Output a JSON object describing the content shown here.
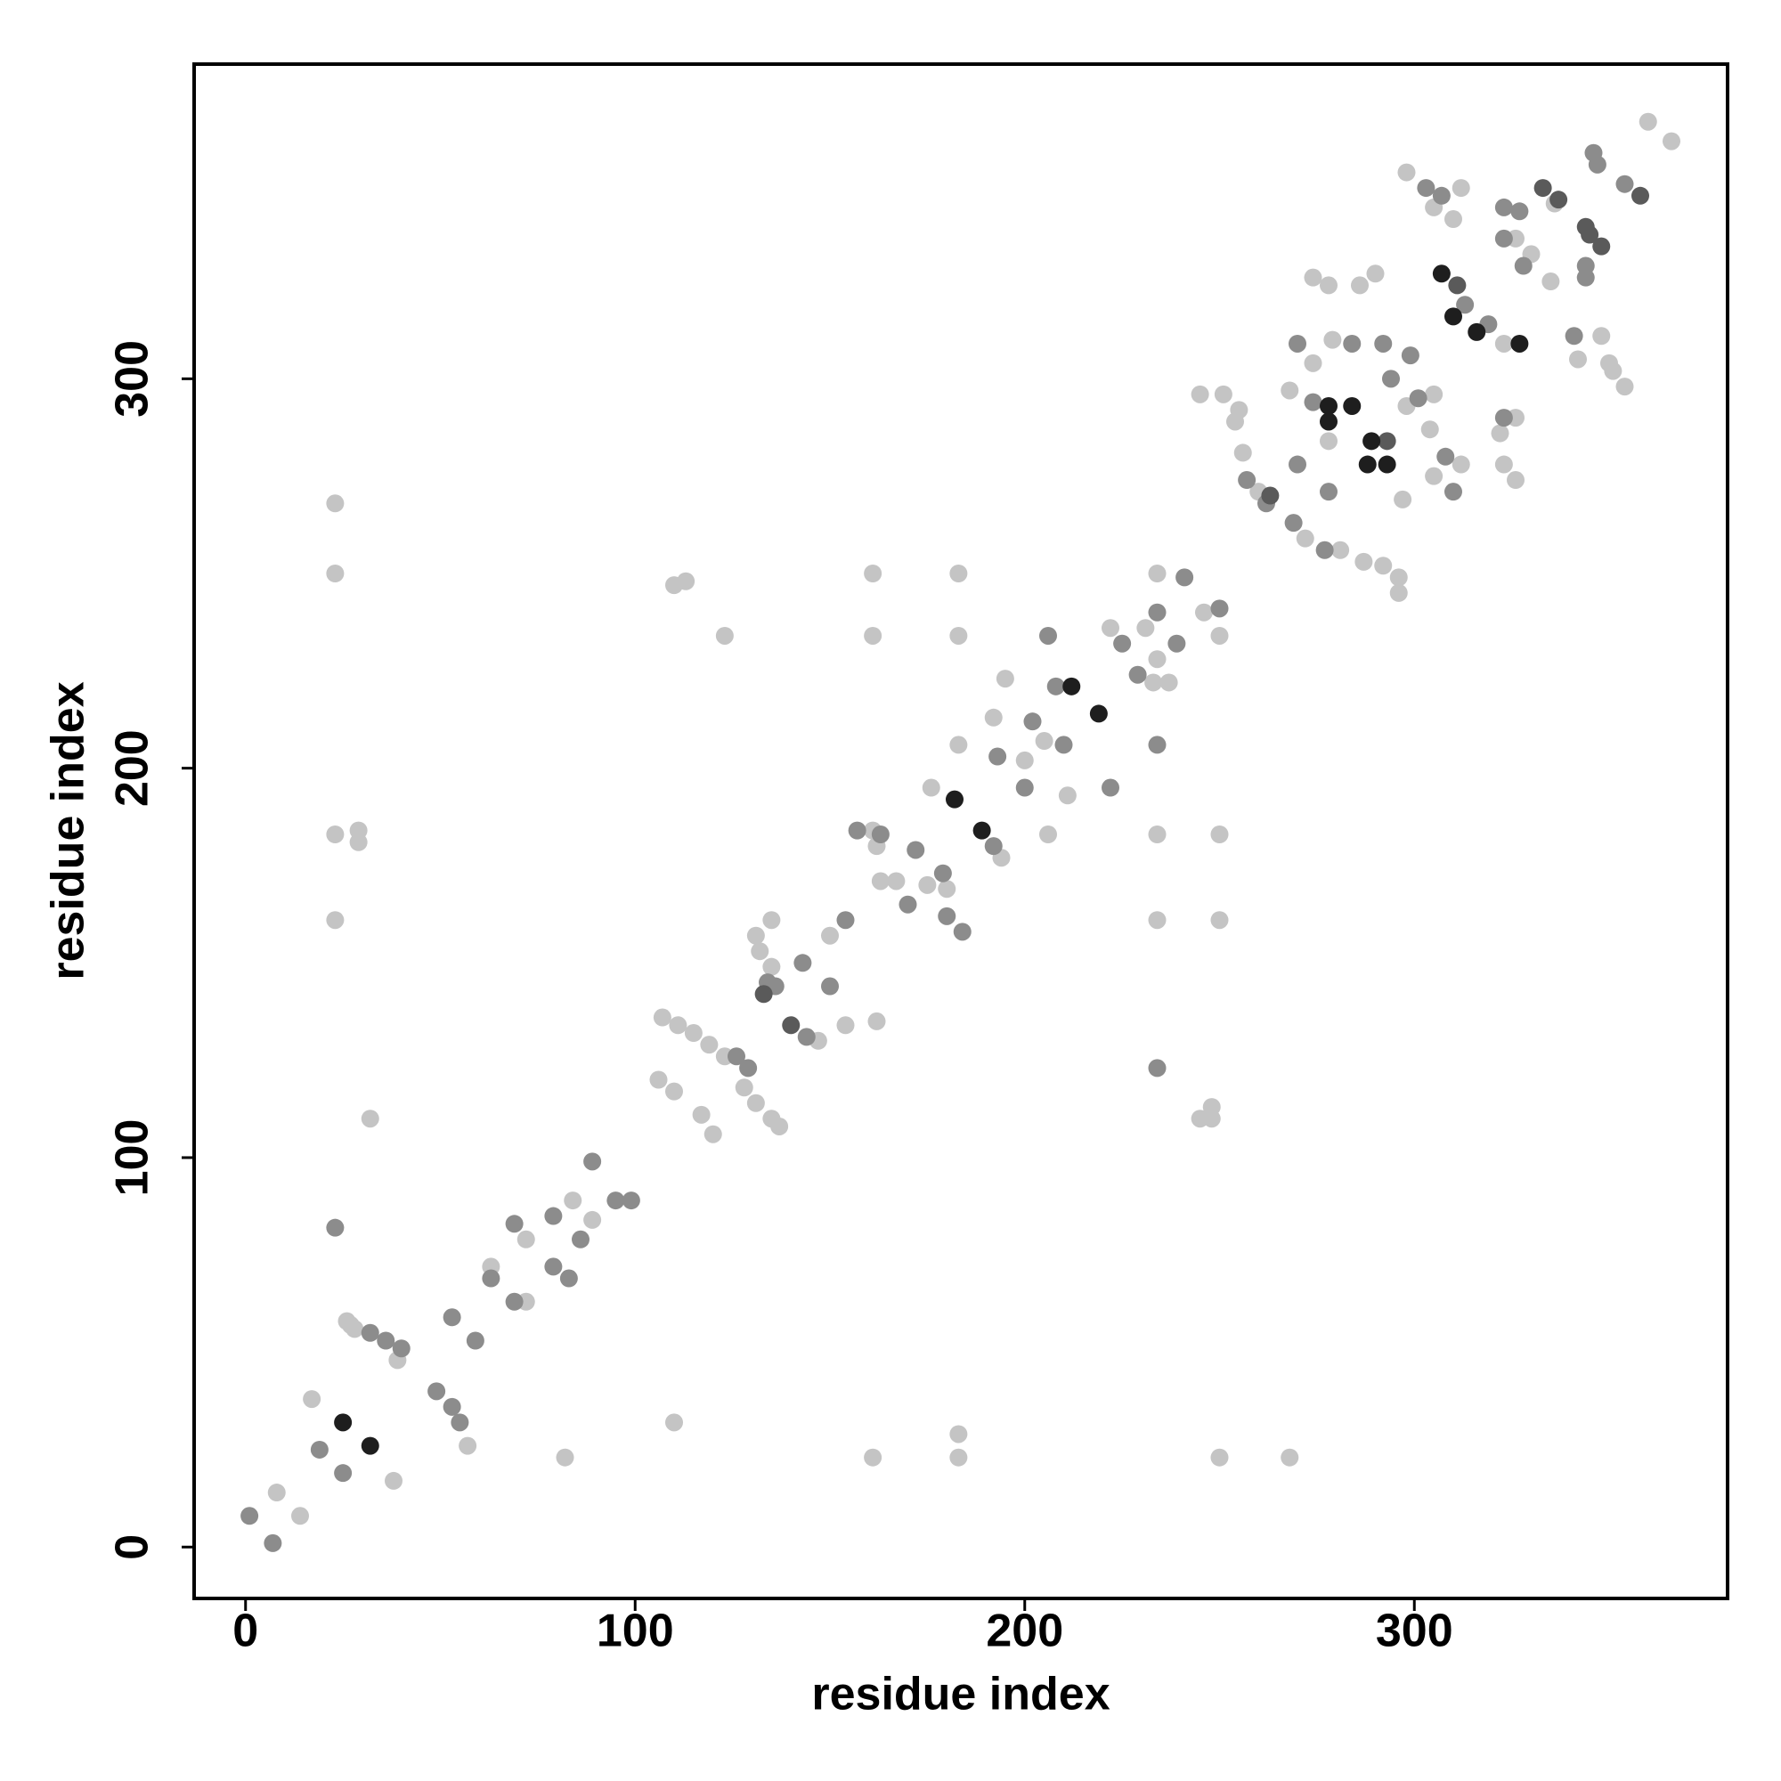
{
  "chart_data": {
    "type": "scatter",
    "xlabel": "residue index",
    "ylabel": "residue index",
    "xlim": [
      -13.2,
      380.4
    ],
    "ylim": [
      -13.2,
      380.8
    ],
    "xticks": [
      0,
      100,
      200,
      300
    ],
    "yticks": [
      0,
      100,
      200,
      300
    ],
    "grid": false,
    "series": [
      {
        "color": "#c4c4c4",
        "x": [
          8,
          14,
          17,
          26,
          27,
          28,
          38,
          23,
          23,
          29,
          29,
          23,
          23,
          32,
          39,
          57,
          63,
          72,
          72,
          84,
          89,
          82,
          107,
          111,
          115,
          119,
          123,
          106,
          110,
          117,
          120,
          128,
          131,
          135,
          137,
          131,
          132,
          135,
          147,
          154,
          162,
          150,
          135,
          110,
          113,
          123,
          110,
          161,
          162,
          163,
          167,
          175,
          180,
          176,
          194,
          161,
          161,
          161,
          183,
          183,
          183,
          183,
          183,
          195,
          192,
          200,
          206,
          205,
          211,
          222,
          231,
          234,
          234,
          246,
          234,
          234,
          233,
          237,
          250,
          250,
          250,
          245,
          248,
          248,
          250,
          268,
          245,
          251,
          255,
          254,
          256,
          260,
          272,
          281,
          268,
          274,
          279,
          274,
          278,
          286,
          290,
          278,
          287,
          292,
          296,
          296,
          297,
          298,
          304,
          305,
          298,
          305,
          310,
          312,
          312,
          305,
          323,
          326,
          330,
          336,
          335,
          322,
          323,
          326,
          326,
          360,
          366,
          342,
          348,
          350,
          354,
          351
        ],
        "y": [
          14,
          8,
          38,
          58,
          57,
          56,
          17,
          161,
          183,
          184,
          181,
          250,
          268,
          110,
          48,
          26,
          72,
          63,
          79,
          89,
          84,
          23,
          136,
          134,
          132,
          129,
          126,
          120,
          117,
          111,
          106,
          118,
          114,
          110,
          108,
          157,
          153,
          149,
          130,
          134,
          135,
          157,
          161,
          247,
          248,
          234,
          32,
          184,
          180,
          171,
          171,
          170,
          169,
          195,
          177,
          250,
          234,
          23,
          250,
          234,
          206,
          29,
          23,
          223,
          213,
          202,
          183,
          207,
          193,
          236,
          236,
          250,
          228,
          240,
          183,
          161,
          222,
          222,
          183,
          161,
          234,
          110,
          113,
          110,
          23,
          23,
          296,
          296,
          292,
          289,
          281,
          271,
          259,
          256,
          297,
          304,
          310,
          326,
          324,
          324,
          327,
          284,
          253,
          252,
          249,
          245,
          269,
          293,
          287,
          296,
          353,
          344,
          341,
          349,
          278,
          275,
          309,
          336,
          332,
          345,
          325,
          286,
          278,
          274,
          290,
          366,
          361,
          305,
          311,
          304,
          298,
          302
        ]
      },
      {
        "color": "#8c8c8c",
        "x": [
          1,
          7,
          23,
          19,
          25,
          32,
          36,
          40,
          49,
          53,
          59,
          53,
          55,
          63,
          69,
          69,
          79,
          79,
          83,
          86,
          89,
          95,
          99,
          126,
          129,
          134,
          136,
          144,
          143,
          150,
          154,
          157,
          163,
          172,
          170,
          179,
          180,
          184,
          192,
          193,
          200,
          202,
          206,
          208,
          210,
          222,
          225,
          234,
          241,
          229,
          239,
          250,
          234,
          234,
          257,
          262,
          269,
          277,
          270,
          270,
          274,
          284,
          278,
          292,
          294,
          299,
          301,
          303,
          307,
          313,
          308,
          310,
          319,
          323,
          327,
          323,
          328,
          323,
          344,
          344,
          347,
          346,
          354,
          341
        ],
        "y": [
          8,
          1,
          82,
          25,
          19,
          55,
          53,
          51,
          40,
          59,
          53,
          36,
          32,
          69,
          83,
          63,
          72,
          85,
          69,
          79,
          99,
          89,
          89,
          126,
          123,
          145,
          144,
          131,
          150,
          144,
          161,
          184,
          183,
          179,
          165,
          173,
          162,
          158,
          180,
          203,
          195,
          212,
          234,
          221,
          206,
          195,
          232,
          240,
          249,
          224,
          232,
          241,
          206,
          123,
          274,
          268,
          263,
          256,
          278,
          309,
          294,
          309,
          271,
          309,
          300,
          306,
          295,
          349,
          347,
          319,
          280,
          271,
          314,
          344,
          343,
          336,
          329,
          290,
          329,
          326,
          355,
          358,
          350,
          311
        ]
      },
      {
        "color": "#5a5a5a",
        "x": [
          133,
          140,
          263,
          293,
          311,
          333,
          337,
          345,
          348,
          344,
          358
        ],
        "y": [
          142,
          134,
          270,
          284,
          324,
          349,
          346,
          337,
          334,
          339,
          347
        ]
      },
      {
        "color": "#1e1e1e",
        "x": [
          25,
          32,
          182,
          189,
          212,
          219,
          278,
          278,
          284,
          289,
          288,
          293,
          307,
          310,
          316,
          327
        ],
        "y": [
          32,
          26,
          192,
          184,
          221,
          214,
          293,
          289,
          293,
          284,
          278,
          278,
          327,
          316,
          312,
          309
        ]
      }
    ]
  }
}
